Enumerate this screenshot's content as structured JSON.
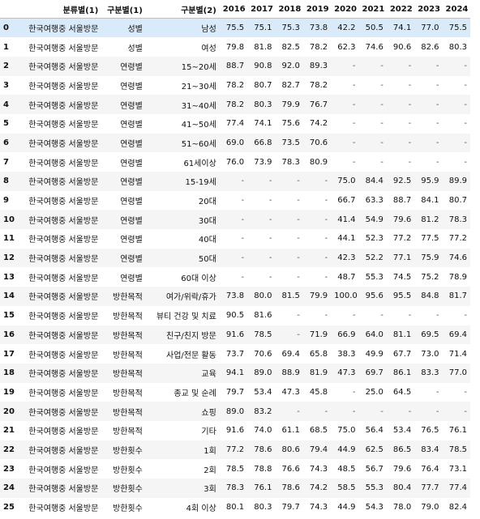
{
  "columns": [
    "",
    "분류별(1)",
    "구분별(1)",
    "구분별(2)",
    "2016",
    "2017",
    "2018",
    "2019",
    "2020",
    "2021",
    "2022",
    "2023",
    "2024"
  ],
  "rows": [
    [
      "0",
      "한국여행중 서울방문",
      "성별",
      "남성",
      "75.5",
      "75.1",
      "75.3",
      "73.8",
      "42.2",
      "50.5",
      "74.1",
      "77.0",
      "75.5"
    ],
    [
      "1",
      "한국여행중 서울방문",
      "성별",
      "여성",
      "79.8",
      "81.8",
      "82.5",
      "78.2",
      "62.3",
      "74.6",
      "90.6",
      "82.6",
      "80.3"
    ],
    [
      "2",
      "한국여행중 서울방문",
      "연령별",
      "15~20세",
      "88.7",
      "90.8",
      "92.0",
      "89.3",
      "-",
      "-",
      "-",
      "-",
      "-"
    ],
    [
      "3",
      "한국여행중 서울방문",
      "연령별",
      "21~30세",
      "78.2",
      "80.7",
      "82.7",
      "78.2",
      "-",
      "-",
      "-",
      "-",
      "-"
    ],
    [
      "4",
      "한국여행중 서울방문",
      "연령별",
      "31~40세",
      "78.2",
      "80.3",
      "79.9",
      "76.7",
      "-",
      "-",
      "-",
      "-",
      "-"
    ],
    [
      "5",
      "한국여행중 서울방문",
      "연령별",
      "41~50세",
      "77.4",
      "74.1",
      "75.6",
      "74.2",
      "-",
      "-",
      "-",
      "-",
      "-"
    ],
    [
      "6",
      "한국여행중 서울방문",
      "연령별",
      "51~60세",
      "69.0",
      "66.8",
      "73.5",
      "70.6",
      "-",
      "-",
      "-",
      "-",
      "-"
    ],
    [
      "7",
      "한국여행중 서울방문",
      "연령별",
      "61세이상",
      "76.0",
      "73.9",
      "78.3",
      "80.9",
      "-",
      "-",
      "-",
      "-",
      "-"
    ],
    [
      "8",
      "한국여행중 서울방문",
      "연령별",
      "15-19세",
      "-",
      "-",
      "-",
      "-",
      "75.0",
      "84.4",
      "92.5",
      "95.9",
      "89.9"
    ],
    [
      "9",
      "한국여행중 서울방문",
      "연령별",
      "20대",
      "-",
      "-",
      "-",
      "-",
      "66.7",
      "63.3",
      "88.7",
      "84.1",
      "80.7"
    ],
    [
      "10",
      "한국여행중 서울방문",
      "연령별",
      "30대",
      "-",
      "-",
      "-",
      "-",
      "41.4",
      "54.9",
      "79.6",
      "81.2",
      "78.3"
    ],
    [
      "11",
      "한국여행중 서울방문",
      "연령별",
      "40대",
      "-",
      "-",
      "-",
      "-",
      "44.1",
      "52.3",
      "77.2",
      "77.5",
      "77.2"
    ],
    [
      "12",
      "한국여행중 서울방문",
      "연령별",
      "50대",
      "-",
      "-",
      "-",
      "-",
      "42.3",
      "52.2",
      "77.1",
      "75.9",
      "74.6"
    ],
    [
      "13",
      "한국여행중 서울방문",
      "연령별",
      "60대 이상",
      "-",
      "-",
      "-",
      "-",
      "48.7",
      "55.3",
      "74.5",
      "75.2",
      "78.9"
    ],
    [
      "14",
      "한국여행중 서울방문",
      "방한목적",
      "여가/위락/휴가",
      "73.8",
      "80.0",
      "81.5",
      "79.9",
      "100.0",
      "95.6",
      "95.5",
      "84.8",
      "81.7"
    ],
    [
      "15",
      "한국여행중 서울방문",
      "방한목적",
      "뷰티 건강 및 치료",
      "90.5",
      "81.6",
      "-",
      "-",
      "-",
      "-",
      "-",
      "-",
      "-"
    ],
    [
      "16",
      "한국여행중 서울방문",
      "방한목적",
      "친구/친지 방문",
      "91.6",
      "78.5",
      "-",
      "71.9",
      "66.9",
      "64.0",
      "81.1",
      "69.5",
      "69.4"
    ],
    [
      "17",
      "한국여행중 서울방문",
      "방한목적",
      "사업/전문 활동",
      "73.7",
      "70.6",
      "69.4",
      "65.8",
      "38.3",
      "49.9",
      "67.7",
      "73.0",
      "71.4"
    ],
    [
      "18",
      "한국여행중 서울방문",
      "방한목적",
      "교육",
      "94.1",
      "89.0",
      "88.9",
      "81.9",
      "47.3",
      "69.7",
      "86.1",
      "83.3",
      "77.0"
    ],
    [
      "19",
      "한국여행중 서울방문",
      "방한목적",
      "종교 및 순례",
      "79.7",
      "53.4",
      "47.3",
      "45.8",
      "-",
      "25.0",
      "64.5",
      "-",
      "-"
    ],
    [
      "20",
      "한국여행중 서울방문",
      "방한목적",
      "쇼핑",
      "89.0",
      "83.2",
      "-",
      "-",
      "-",
      "-",
      "-",
      "-",
      "-"
    ],
    [
      "21",
      "한국여행중 서울방문",
      "방한목적",
      "기타",
      "91.6",
      "74.0",
      "61.1",
      "68.5",
      "75.0",
      "56.4",
      "53.4",
      "76.5",
      "76.1"
    ],
    [
      "22",
      "한국여행중 서울방문",
      "방한횟수",
      "1회",
      "77.2",
      "78.6",
      "80.6",
      "79.4",
      "44.9",
      "62.5",
      "86.5",
      "83.4",
      "78.5"
    ],
    [
      "23",
      "한국여행중 서울방문",
      "방한횟수",
      "2회",
      "78.5",
      "78.8",
      "76.6",
      "74.3",
      "48.5",
      "56.7",
      "79.6",
      "76.4",
      "73.1"
    ],
    [
      "24",
      "한국여행중 서울방문",
      "방한횟수",
      "3회",
      "78.3",
      "76.1",
      "78.6",
      "74.2",
      "58.5",
      "55.3",
      "80.4",
      "77.7",
      "77.4"
    ],
    [
      "25",
      "한국여행중 서울방문",
      "방한횟수",
      "4회 이상",
      "80.1",
      "80.3",
      "79.7",
      "74.3",
      "44.9",
      "54.3",
      "78.0",
      "79.0",
      "82.4"
    ]
  ],
  "selected_row": 0
}
